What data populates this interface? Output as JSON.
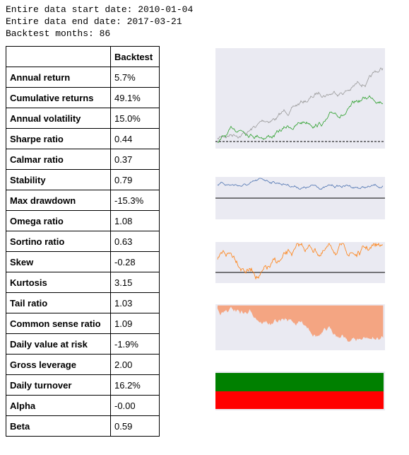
{
  "header": {
    "lines": [
      "Entire data start date: 2010-01-04",
      "Entire data end date: 2017-03-21",
      "Backtest months: 86"
    ]
  },
  "table": {
    "columns": [
      "",
      "Backtest"
    ],
    "rows": [
      [
        "Annual return",
        "5.7%"
      ],
      [
        "Cumulative returns",
        "49.1%"
      ],
      [
        "Annual volatility",
        "15.0%"
      ],
      [
        "Sharpe ratio",
        "0.44"
      ],
      [
        "Calmar ratio",
        "0.37"
      ],
      [
        "Stability",
        "0.79"
      ],
      [
        "Max drawdown",
        "-15.3%"
      ],
      [
        "Omega ratio",
        "1.08"
      ],
      [
        "Sortino ratio",
        "0.63"
      ],
      [
        "Skew",
        "-0.28"
      ],
      [
        "Kurtosis",
        "3.15"
      ],
      [
        "Tail ratio",
        "1.03"
      ],
      [
        "Common sense ratio",
        "1.09"
      ],
      [
        "Daily value at risk",
        "-1.9%"
      ],
      [
        "Gross leverage",
        "2.00"
      ],
      [
        "Daily turnover",
        "16.2%"
      ],
      [
        "Alpha",
        "-0.00"
      ],
      [
        "Beta",
        "0.59"
      ]
    ]
  }
}
